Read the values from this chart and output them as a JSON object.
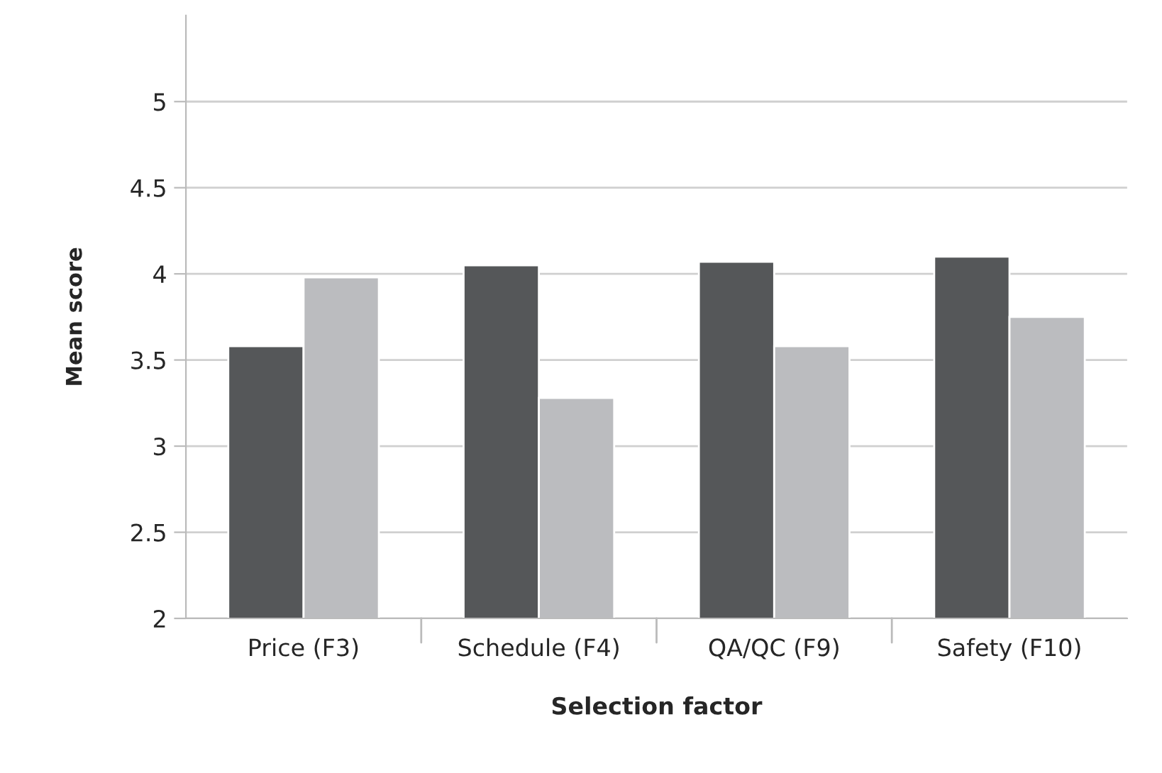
{
  "chart_data": {
    "type": "bar",
    "xlabel": "Selection factor",
    "ylabel": "Mean score",
    "categories": [
      "Price (F3)",
      "Schedule (F4)",
      "QA/QC (F9)",
      "Safety (F10)"
    ],
    "series": [
      {
        "color": "#555759",
        "values": [
          3.58,
          4.05,
          4.07,
          4.1
        ]
      },
      {
        "color": "#bbbcbf",
        "values": [
          3.98,
          3.28,
          3.58,
          3.75
        ]
      }
    ],
    "ylim": [
      2,
      5.5
    ],
    "yticks": [
      2,
      2.5,
      3,
      3.5,
      4,
      4.5,
      5
    ],
    "grid": "y"
  }
}
